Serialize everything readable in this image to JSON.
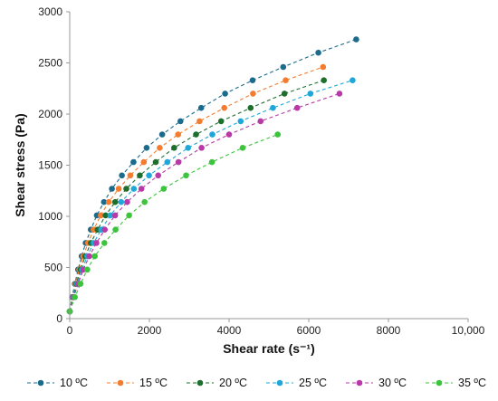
{
  "chart_data": {
    "type": "scatter",
    "xlabel": "Shear rate (s⁻¹)",
    "ylabel": "Shear stress (Pa)",
    "xlim": [
      0,
      10000
    ],
    "ylim": [
      0,
      3000
    ],
    "x_ticks": [
      "0",
      "2000",
      "4000",
      "6000",
      "8000",
      "10,000"
    ],
    "y_ticks": [
      "0",
      "500",
      "1000",
      "1500",
      "2000",
      "2500",
      "3000"
    ],
    "grid": false,
    "legend_position": "bottom",
    "line_style": "dashed with circle markers",
    "series": [
      {
        "name": "10 ºC",
        "color": "#1b6b8c",
        "points": [
          [
            0,
            70
          ],
          [
            60,
            210
          ],
          [
            130,
            340
          ],
          [
            210,
            480
          ],
          [
            300,
            610
          ],
          [
            400,
            740
          ],
          [
            530,
            870
          ],
          [
            680,
            1010
          ],
          [
            860,
            1140
          ],
          [
            1060,
            1270
          ],
          [
            1310,
            1400
          ],
          [
            1600,
            1530
          ],
          [
            1930,
            1670
          ],
          [
            2320,
            1800
          ],
          [
            2780,
            1930
          ],
          [
            3300,
            2060
          ],
          [
            3900,
            2200
          ],
          [
            4590,
            2330
          ],
          [
            5360,
            2460
          ],
          [
            6240,
            2600
          ],
          [
            7190,
            2730
          ]
        ]
      },
      {
        "name": "15 ºC",
        "color": "#f47c30",
        "points": [
          [
            0,
            70
          ],
          [
            70,
            210
          ],
          [
            150,
            340
          ],
          [
            240,
            480
          ],
          [
            340,
            610
          ],
          [
            460,
            740
          ],
          [
            600,
            870
          ],
          [
            780,
            1010
          ],
          [
            980,
            1140
          ],
          [
            1230,
            1270
          ],
          [
            1520,
            1400
          ],
          [
            1860,
            1530
          ],
          [
            2260,
            1670
          ],
          [
            2720,
            1800
          ],
          [
            3260,
            1930
          ],
          [
            3880,
            2060
          ],
          [
            4600,
            2200
          ],
          [
            5420,
            2330
          ],
          [
            6360,
            2460
          ]
        ]
      },
      {
        "name": "20 ºC",
        "color": "#1e6f2d",
        "points": [
          [
            0,
            70
          ],
          [
            80,
            210
          ],
          [
            170,
            340
          ],
          [
            270,
            480
          ],
          [
            390,
            610
          ],
          [
            530,
            740
          ],
          [
            700,
            870
          ],
          [
            900,
            1010
          ],
          [
            1140,
            1140
          ],
          [
            1420,
            1270
          ],
          [
            1760,
            1400
          ],
          [
            2160,
            1530
          ],
          [
            2620,
            1670
          ],
          [
            3170,
            1800
          ],
          [
            3800,
            1930
          ],
          [
            4540,
            2060
          ],
          [
            5390,
            2200
          ],
          [
            6380,
            2330
          ]
        ]
      },
      {
        "name": "25 ºC",
        "color": "#1ea7d8",
        "points": [
          [
            0,
            70
          ],
          [
            90,
            210
          ],
          [
            190,
            340
          ],
          [
            310,
            480
          ],
          [
            440,
            610
          ],
          [
            600,
            740
          ],
          [
            790,
            870
          ],
          [
            1020,
            1010
          ],
          [
            1290,
            1140
          ],
          [
            1610,
            1270
          ],
          [
            1990,
            1400
          ],
          [
            2450,
            1530
          ],
          [
            2970,
            1670
          ],
          [
            3580,
            1800
          ],
          [
            4290,
            1930
          ],
          [
            5100,
            2060
          ],
          [
            6040,
            2200
          ],
          [
            7100,
            2330
          ]
        ]
      },
      {
        "name": "30 ºC",
        "color": "#b83aa6",
        "points": [
          [
            0,
            70
          ],
          [
            100,
            210
          ],
          [
            210,
            340
          ],
          [
            340,
            480
          ],
          [
            490,
            610
          ],
          [
            670,
            740
          ],
          [
            880,
            870
          ],
          [
            1140,
            1010
          ],
          [
            1440,
            1140
          ],
          [
            1800,
            1270
          ],
          [
            2220,
            1400
          ],
          [
            2730,
            1530
          ],
          [
            3310,
            1670
          ],
          [
            4000,
            1800
          ],
          [
            4790,
            1930
          ],
          [
            5710,
            2060
          ],
          [
            6770,
            2200
          ]
        ]
      },
      {
        "name": "35 ºC",
        "color": "#3cc43c",
        "points": [
          [
            0,
            70
          ],
          [
            130,
            210
          ],
          [
            270,
            340
          ],
          [
            440,
            480
          ],
          [
            630,
            610
          ],
          [
            870,
            740
          ],
          [
            1150,
            870
          ],
          [
            1490,
            1010
          ],
          [
            1880,
            1140
          ],
          [
            2360,
            1270
          ],
          [
            2920,
            1400
          ],
          [
            3570,
            1530
          ],
          [
            4340,
            1670
          ],
          [
            5220,
            1800
          ]
        ]
      }
    ]
  }
}
